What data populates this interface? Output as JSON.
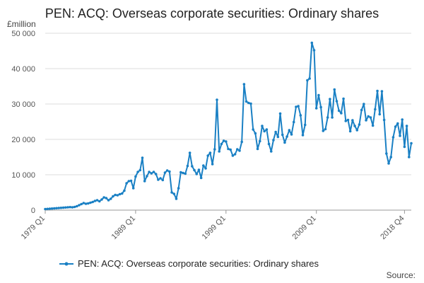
{
  "chart_data": {
    "type": "line",
    "title": "PEN: ACQ: Overseas corporate securities: Ordinary shares",
    "unit_label": "£million",
    "source_label": "Source:",
    "ylim": [
      0,
      50000
    ],
    "yticks": [
      0,
      10000,
      20000,
      30000,
      40000,
      50000
    ],
    "ytick_labels": [
      "0",
      "10 000",
      "20 000",
      "30 000",
      "40 000",
      "50 000"
    ],
    "xticks": [
      {
        "label": "1979 Q1",
        "index": 0
      },
      {
        "label": "1989 Q1",
        "index": 40
      },
      {
        "label": "1999 Q1",
        "index": 80
      },
      {
        "label": "2009 Q1",
        "index": 120
      },
      {
        "label": "2018 Q4",
        "index": 159
      }
    ],
    "colors": {
      "series": "#1a80c4"
    },
    "series": [
      {
        "name": "PEN: ACQ: Overseas corporate securities: Ordinary shares",
        "start": "1979 Q1",
        "values": [
          300,
          350,
          400,
          450,
          500,
          550,
          600,
          650,
          700,
          750,
          800,
          850,
          800,
          900,
          1100,
          1400,
          1700,
          2000,
          1800,
          1900,
          2100,
          2300,
          2600,
          2800,
          2500,
          3000,
          3600,
          3400,
          2800,
          3200,
          3900,
          4300,
          4200,
          4500,
          4700,
          5500,
          7600,
          8200,
          8300,
          6200,
          9500,
          10800,
          11300,
          14800,
          8200,
          9600,
          10800,
          10400,
          10800,
          10200,
          8600,
          9000,
          8500,
          10600,
          11200,
          10900,
          5000,
          4600,
          3200,
          6200,
          10700,
          10500,
          10300,
          12500,
          16200,
          12400,
          11300,
          10200,
          11400,
          9100,
          12600,
          11800,
          15400,
          16200,
          13000,
          17200,
          31200,
          16600,
          18700,
          19600,
          19400,
          17300,
          17100,
          15400,
          15800,
          17200,
          16800,
          19300,
          35600,
          30700,
          30300,
          30100,
          22800,
          21700,
          17300,
          19500,
          23800,
          22300,
          22800,
          18700,
          16600,
          19800,
          22100,
          20700,
          27300,
          21300,
          19100,
          20800,
          22600,
          21400,
          24900,
          29200,
          29400,
          26800,
          21200,
          24100,
          36700,
          37200,
          47300,
          45200,
          28800,
          32500,
          29100,
          22400,
          22900,
          26200,
          31400,
          26200,
          34100,
          30800,
          28100,
          27400,
          31500,
          25200,
          25500,
          22300,
          25400,
          23800,
          22600,
          24200,
          28300,
          30000,
          25400,
          26500,
          26200,
          23900,
          28500,
          33700,
          27100,
          33600,
          25500,
          16000,
          13200,
          15000,
          20600,
          23600,
          24500,
          21000,
          25600,
          17900,
          23800,
          15000,
          18900
        ]
      }
    ]
  }
}
